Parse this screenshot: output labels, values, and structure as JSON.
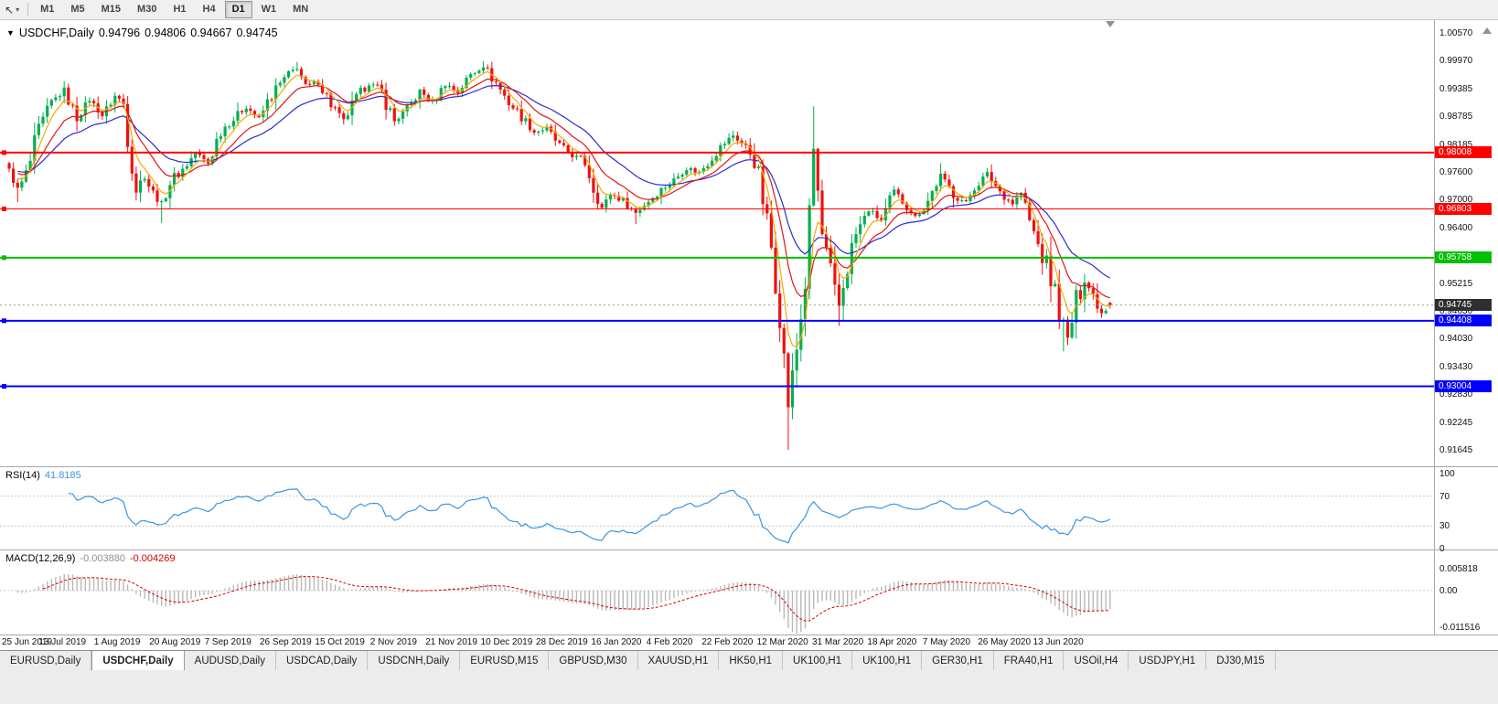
{
  "colors": {
    "candle_up": "#00b050",
    "candle_down": "#f01010",
    "rsi": "#3b95e0",
    "macd_hist": "#b8b8b8",
    "macd_signal": "#d40000",
    "current_tag": "#2e2e2e",
    "line_red": "#ff0000",
    "line_green": "#00c000",
    "line_blue": "#0000ff"
  },
  "toolbar": {
    "timeframes": [
      "M1",
      "M5",
      "M15",
      "M30",
      "H1",
      "H4",
      "D1",
      "W1",
      "MN"
    ],
    "active_timeframe": "D1"
  },
  "chart": {
    "symbol_label": "USDCHF,Daily",
    "ohlc": {
      "open": "0.94796",
      "high": "0.94806",
      "low": "0.94667",
      "close": "0.94745"
    },
    "price_axis": [
      "1.00570",
      "0.99970",
      "0.99385",
      "0.98785",
      "0.98185",
      "0.97600",
      "0.97000",
      "0.96400",
      "0.95815",
      "0.95215",
      "0.94630",
      "0.94030",
      "0.93430",
      "0.92830",
      "0.92245",
      "0.91645"
    ],
    "hlines": [
      {
        "price": 0.98008,
        "label": "0.98008",
        "color": "#ff0000",
        "width": 2
      },
      {
        "price": 0.96803,
        "label": "0.96803",
        "color": "#ff0000",
        "width": 1
      },
      {
        "price": 0.95758,
        "label": "0.95758",
        "color": "#00c000",
        "width": 2
      },
      {
        "price": 0.94408,
        "label": "0.94408",
        "color": "#0000ff",
        "width": 2
      },
      {
        "price": 0.93004,
        "label": "0.93004",
        "color": "#0000ff",
        "width": 2
      }
    ],
    "current_price": {
      "price": 0.94745,
      "label": "0.94745"
    },
    "date_axis": [
      "25 Jun 2019",
      "13 Jul 2019",
      "1 Aug 2019",
      "20 Aug 2019",
      "7 Sep 2019",
      "26 Sep 2019",
      "15 Oct 2019",
      "2 Nov 2019",
      "21 Nov 2019",
      "10 Dec 2019",
      "28 Dec 2019",
      "16 Jan 2020",
      "4 Feb 2020",
      "22 Feb 2020",
      "12 Mar 2020",
      "31 Mar 2020",
      "18 Apr 2020",
      "7 May 2020",
      "26 May 2020",
      "13 Jun 2020"
    ]
  },
  "chart_data": {
    "type": "candlestick",
    "symbol": "USDCHF",
    "timeframe": "Daily",
    "ylim": [
      0.91645,
      1.0057
    ],
    "candles_total": 261,
    "price_path": [
      [
        0,
        0.976
      ],
      [
        2,
        0.9722
      ],
      [
        4,
        0.975
      ],
      [
        7,
        0.984
      ],
      [
        10,
        0.9905
      ],
      [
        13,
        0.9935
      ],
      [
        16,
        0.9872
      ],
      [
        19,
        0.9915
      ],
      [
        22,
        0.988
      ],
      [
        25,
        0.9922
      ],
      [
        27,
        0.9905
      ],
      [
        28,
        0.984
      ],
      [
        30,
        0.9725
      ],
      [
        32,
        0.975
      ],
      [
        34,
        0.9712
      ],
      [
        36,
        0.969
      ],
      [
        38,
        0.9738
      ],
      [
        41,
        0.9765
      ],
      [
        44,
        0.98
      ],
      [
        47,
        0.9778
      ],
      [
        50,
        0.985
      ],
      [
        53,
        0.9872
      ],
      [
        56,
        0.99
      ],
      [
        59,
        0.9872
      ],
      [
        62,
        0.9925
      ],
      [
        65,
        0.9958
      ],
      [
        68,
        0.9985
      ],
      [
        70,
        0.994
      ],
      [
        73,
        0.9952
      ],
      [
        76,
        0.9905
      ],
      [
        79,
        0.9868
      ],
      [
        82,
        0.9915
      ],
      [
        85,
        0.995
      ],
      [
        88,
        0.993
      ],
      [
        91,
        0.9868
      ],
      [
        94,
        0.9892
      ],
      [
        97,
        0.9932
      ],
      [
        100,
        0.9908
      ],
      [
        103,
        0.9948
      ],
      [
        106,
        0.993
      ],
      [
        109,
        0.9968
      ],
      [
        112,
        0.9988
      ],
      [
        115,
        0.995
      ],
      [
        118,
        0.9908
      ],
      [
        121,
        0.9878
      ],
      [
        124,
        0.9845
      ],
      [
        127,
        0.9852
      ],
      [
        130,
        0.9815
      ],
      [
        133,
        0.9795
      ],
      [
        136,
        0.978
      ],
      [
        138,
        0.973
      ],
      [
        140,
        0.9682
      ],
      [
        142,
        0.9712
      ],
      [
        145,
        0.9698
      ],
      [
        148,
        0.9672
      ],
      [
        151,
        0.9698
      ],
      [
        154,
        0.9722
      ],
      [
        157,
        0.9742
      ],
      [
        160,
        0.9768
      ],
      [
        163,
        0.9758
      ],
      [
        166,
        0.9792
      ],
      [
        169,
        0.9822
      ],
      [
        171,
        0.9838
      ],
      [
        174,
        0.9812
      ],
      [
        176,
        0.9792
      ],
      [
        178,
        0.97
      ],
      [
        180,
        0.9598
      ],
      [
        182,
        0.9455
      ],
      [
        184,
        0.9262
      ],
      [
        186,
        0.938
      ],
      [
        188,
        0.952
      ],
      [
        190,
        0.9808
      ],
      [
        192,
        0.9622
      ],
      [
        194,
        0.9538
      ],
      [
        196,
        0.9472
      ],
      [
        198,
        0.956
      ],
      [
        200,
        0.9625
      ],
      [
        203,
        0.9678
      ],
      [
        206,
        0.9655
      ],
      [
        209,
        0.9718
      ],
      [
        212,
        0.9688
      ],
      [
        214,
        0.9662
      ],
      [
        217,
        0.9698
      ],
      [
        220,
        0.9752
      ],
      [
        223,
        0.9712
      ],
      [
        226,
        0.9692
      ],
      [
        228,
        0.973
      ],
      [
        231,
        0.9755
      ],
      [
        234,
        0.9718
      ],
      [
        237,
        0.9692
      ],
      [
        239,
        0.9715
      ],
      [
        241,
        0.9652
      ],
      [
        243,
        0.9602
      ],
      [
        245,
        0.9558
      ],
      [
        247,
        0.9502
      ],
      [
        249,
        0.9432
      ],
      [
        250,
        0.9402
      ],
      [
        252,
        0.9478
      ],
      [
        254,
        0.9528
      ],
      [
        256,
        0.9495
      ],
      [
        258,
        0.9458
      ],
      [
        260,
        0.94745
      ]
    ],
    "wick_overrides": [
      {
        "i": 2,
        "low": 0.9695
      },
      {
        "i": 13,
        "high": 0.9952
      },
      {
        "i": 36,
        "low": 0.965
      },
      {
        "i": 68,
        "high": 0.9995
      },
      {
        "i": 112,
        "high": 0.9997
      },
      {
        "i": 148,
        "low": 0.9648
      },
      {
        "i": 171,
        "high": 0.9848
      },
      {
        "i": 184,
        "low": 0.91645
      },
      {
        "i": 190,
        "high": 0.99
      },
      {
        "i": 196,
        "low": 0.943
      },
      {
        "i": 249,
        "low": 0.9375
      }
    ],
    "last_candle": {
      "open": 0.94796,
      "high": 0.94806,
      "low": 0.94667,
      "close": 0.94745
    },
    "moving_averages": [
      {
        "name": "fast-ma",
        "period": 5,
        "color": "#f5aa00"
      },
      {
        "name": "mid-ma",
        "period": 12,
        "color": "#e01515"
      },
      {
        "name": "slow-ma",
        "period": 24,
        "color": "#2b2bd0"
      }
    ]
  },
  "rsi": {
    "label": "RSI(14)",
    "value": "41.8185",
    "period": 14,
    "levels": [
      70,
      30
    ],
    "axis": [
      "100",
      "70",
      "30",
      "0"
    ]
  },
  "macd": {
    "label": "MACD(12,26,9)",
    "value_main": "-0.003880",
    "value_signal": "-0.004269",
    "axis": [
      "0.005818",
      "0.00",
      "-0.011516"
    ]
  },
  "tabs": {
    "items": [
      "EURUSD,Daily",
      "USDCHF,Daily",
      "AUDUSD,Daily",
      "USDCAD,Daily",
      "USDCNH,Daily",
      "EURUSD,M15",
      "GBPUSD,M30",
      "XAUUSD,H1",
      "HK50,H1",
      "UK100,H1",
      "UK100,H1",
      "GER30,H1",
      "FRA40,H1",
      "USOil,H4",
      "USDJPY,H1",
      "DJ30,M15"
    ],
    "active_index": 1
  }
}
